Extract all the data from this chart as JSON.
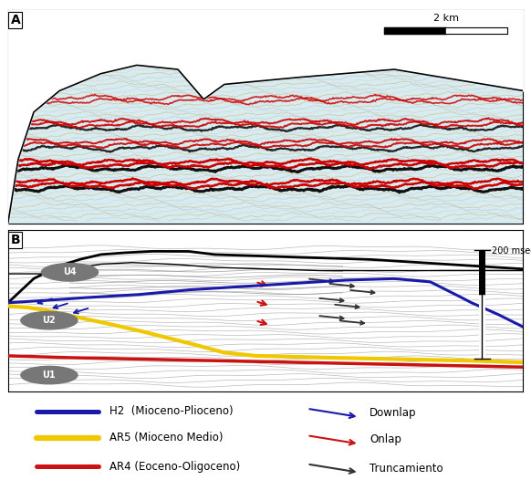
{
  "fig_width": 5.82,
  "fig_height": 5.26,
  "dpi": 100,
  "panel_A_label": "A",
  "panel_B_label": "B",
  "scale_bar_label": "2 km",
  "scale_200mseg": "200 mseg",
  "h2_color": "#1a1aaa",
  "ar5_color": "#f0c800",
  "ar4_color": "#cc1111",
  "downlap_color": "#1a1aaa",
  "onlap_color": "#cc1111",
  "truncamiento_color": "#333333",
  "background_color": "#ffffff",
  "unit_circle_color": "#777777",
  "gray_line_color": "#aaaaaa",
  "legend_items_left": [
    {
      "label": "H2  (Mioceno-Plioceno)",
      "color": "#1a1aaa",
      "lw": 2.0
    },
    {
      "label": "AR5 (Mioceno Medio)",
      "color": "#f0c800",
      "lw": 2.5
    },
    {
      "label": "AR4 (Eoceno-Oligoceno)",
      "color": "#cc1111",
      "lw": 2.0
    }
  ],
  "legend_items_right": [
    {
      "label": "Downlap",
      "color": "#1a1aaa"
    },
    {
      "label": "Onlap",
      "color": "#cc1111"
    },
    {
      "label": "Truncamiento",
      "color": "#333333"
    }
  ]
}
